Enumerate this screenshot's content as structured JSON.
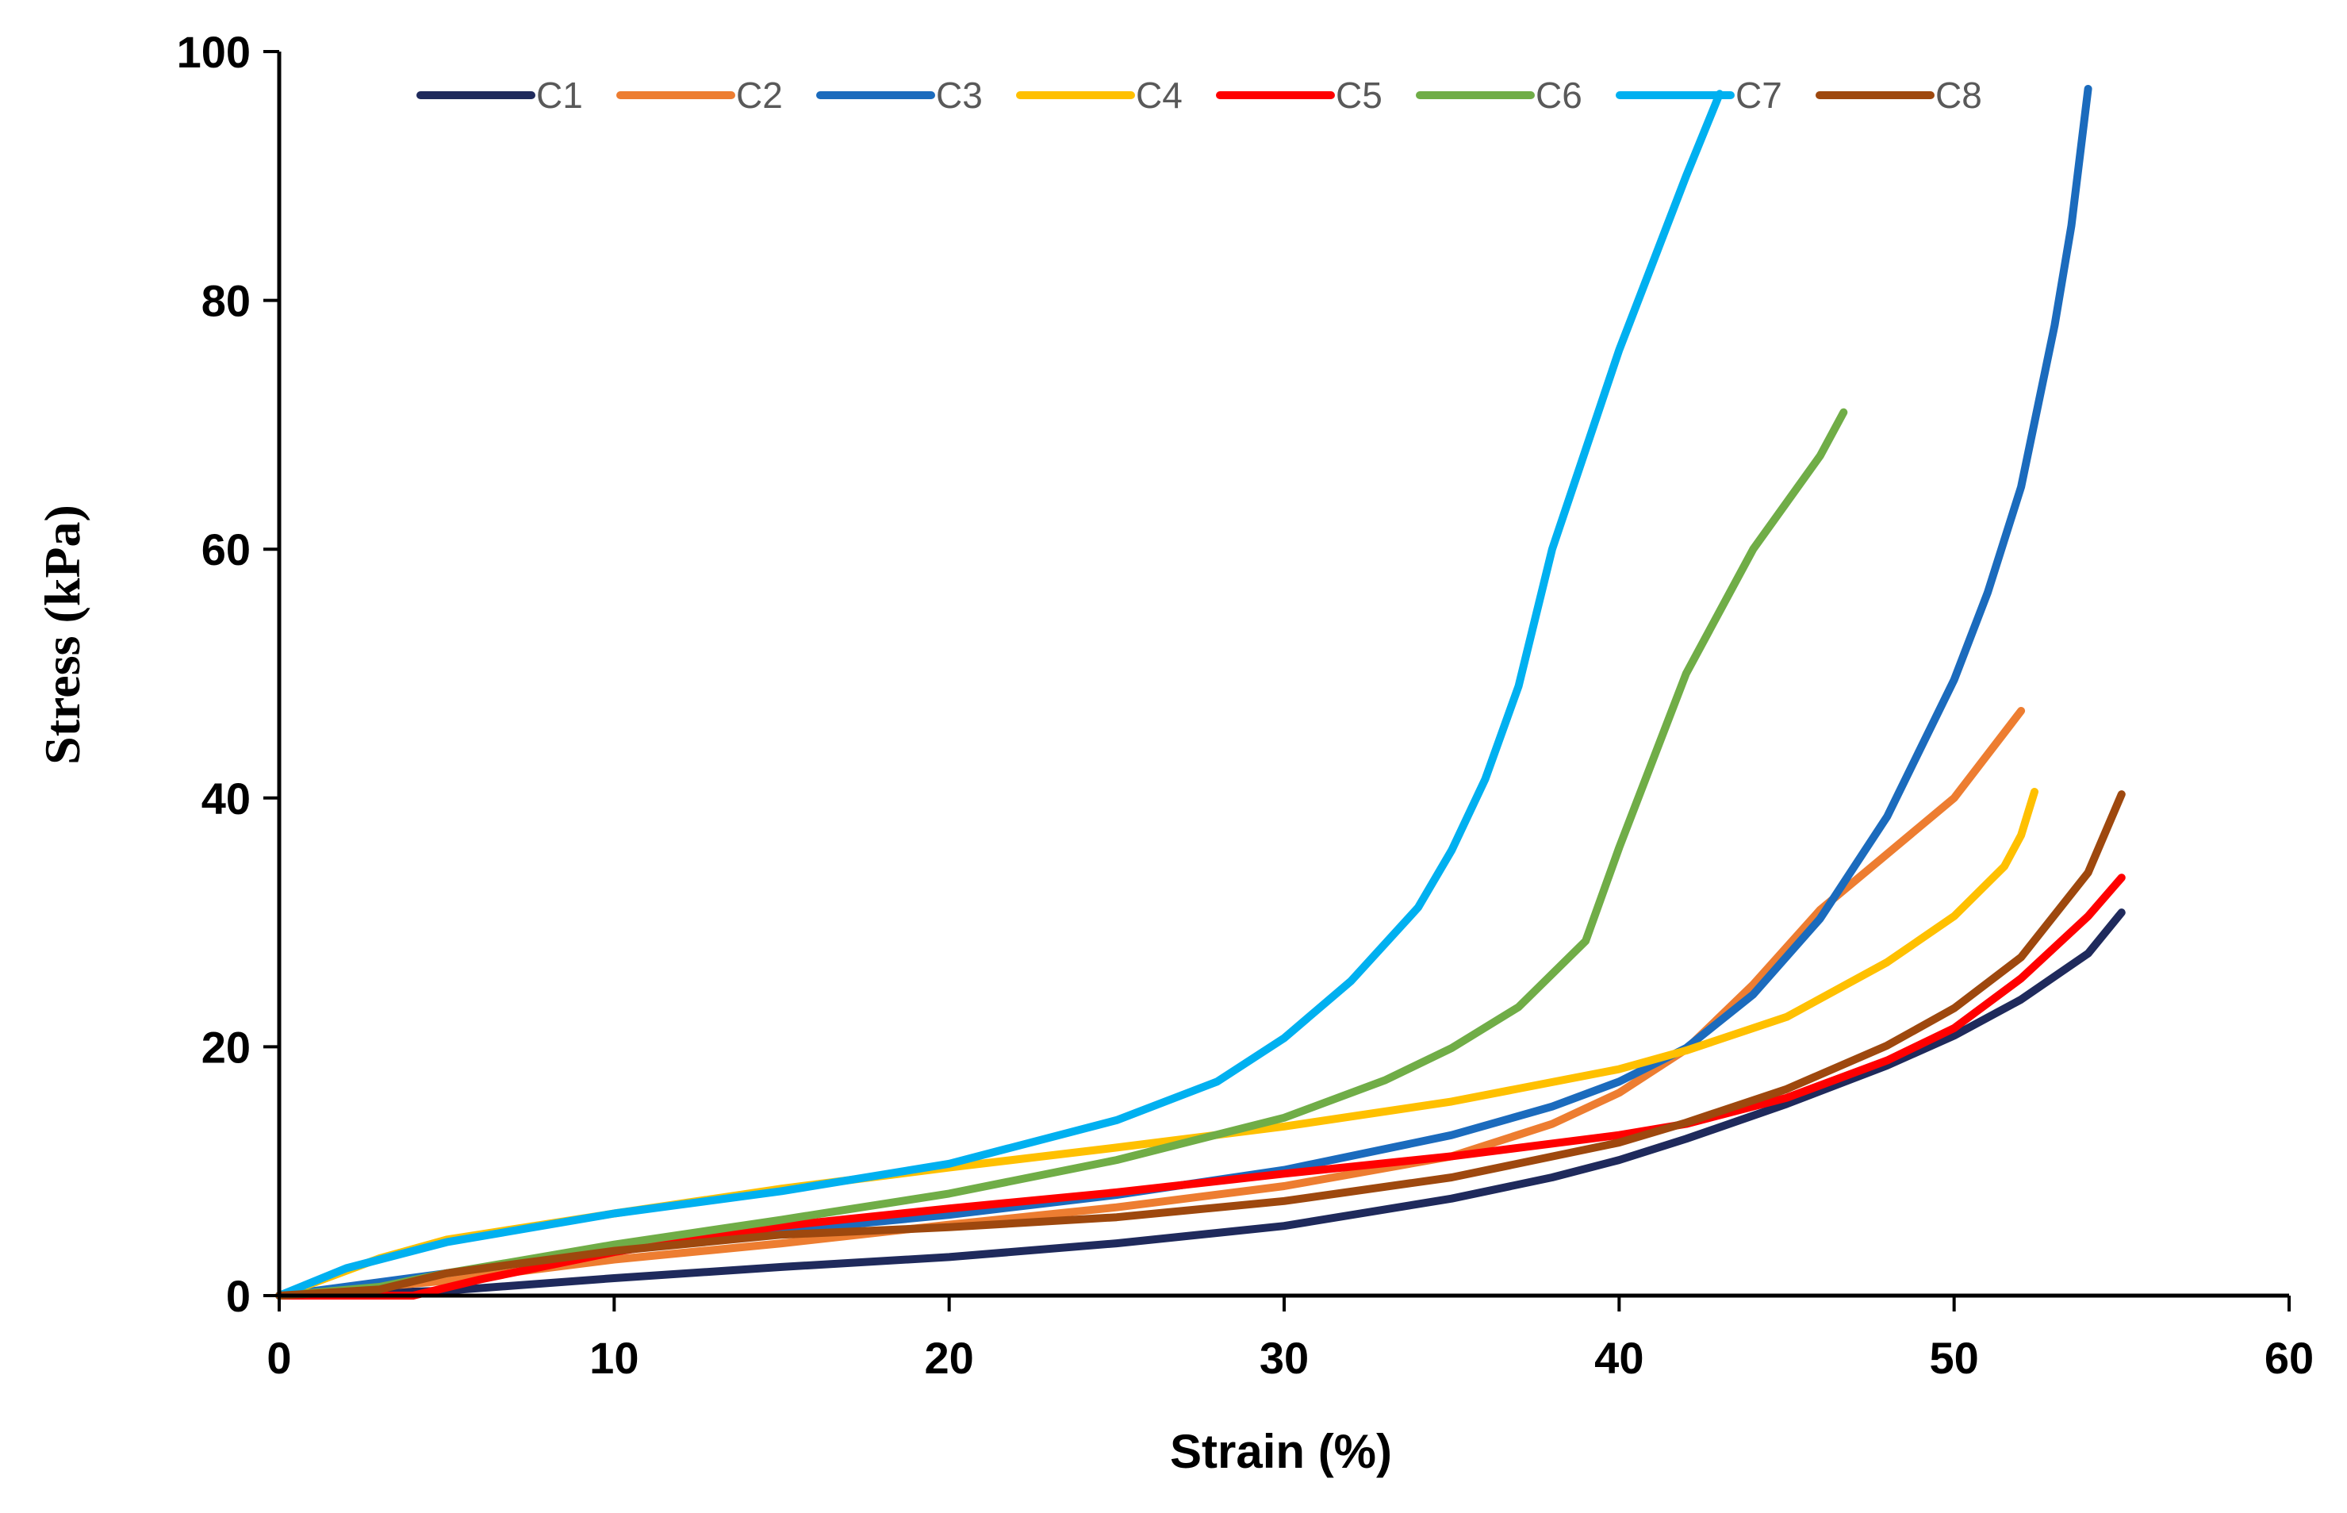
{
  "chart_data": {
    "type": "line",
    "title": "",
    "xlabel": "Strain (%)",
    "ylabel": "Stress (kPa)",
    "xlim": [
      0,
      60
    ],
    "ylim": [
      0,
      100
    ],
    "xticks": [
      0,
      10,
      20,
      30,
      40,
      50,
      60
    ],
    "yticks": [
      0,
      20,
      40,
      60,
      80,
      100
    ],
    "grid": false,
    "legend_position": "top",
    "series": [
      {
        "name": "C1",
        "color": "#1f2a5c",
        "points": [
          [
            0,
            0
          ],
          [
            5,
            0.4
          ],
          [
            10,
            1.4
          ],
          [
            15,
            2.3
          ],
          [
            20,
            3.1
          ],
          [
            25,
            4.2
          ],
          [
            30,
            5.6
          ],
          [
            35,
            7.8
          ],
          [
            38,
            9.5
          ],
          [
            40,
            10.9
          ],
          [
            42,
            12.6
          ],
          [
            45,
            15.4
          ],
          [
            48,
            18.5
          ],
          [
            50,
            20.9
          ],
          [
            52,
            23.8
          ],
          [
            54,
            27.5
          ],
          [
            55,
            30.8
          ]
        ]
      },
      {
        "name": "C2",
        "color": "#ed7d31",
        "points": [
          [
            0,
            0
          ],
          [
            5,
            1.2
          ],
          [
            10,
            2.9
          ],
          [
            15,
            4.2
          ],
          [
            20,
            5.7
          ],
          [
            25,
            7.1
          ],
          [
            30,
            8.8
          ],
          [
            35,
            11.2
          ],
          [
            38,
            13.8
          ],
          [
            40,
            16.3
          ],
          [
            42,
            19.8
          ],
          [
            44,
            25
          ],
          [
            46,
            31
          ],
          [
            48,
            35.5
          ],
          [
            50,
            40
          ],
          [
            52,
            47
          ]
        ]
      },
      {
        "name": "C3",
        "color": "#1b6bbd",
        "points": [
          [
            0,
            0
          ],
          [
            5,
            1.8
          ],
          [
            10,
            3.7
          ],
          [
            15,
            5.2
          ],
          [
            20,
            6.5
          ],
          [
            25,
            8.1
          ],
          [
            30,
            10.1
          ],
          [
            35,
            12.9
          ],
          [
            38,
            15.2
          ],
          [
            40,
            17.2
          ],
          [
            42,
            19.9
          ],
          [
            44,
            24.2
          ],
          [
            46,
            30.3
          ],
          [
            48,
            38.5
          ],
          [
            50,
            49.5
          ],
          [
            51,
            56.5
          ],
          [
            52,
            65
          ],
          [
            53,
            78
          ],
          [
            53.5,
            86
          ],
          [
            54,
            97
          ]
        ]
      },
      {
        "name": "C4",
        "color": "#ffc000",
        "points": [
          [
            0,
            0
          ],
          [
            3,
            3
          ],
          [
            5,
            4.5
          ],
          [
            10,
            6.6
          ],
          [
            15,
            8.6
          ],
          [
            20,
            10.3
          ],
          [
            25,
            11.9
          ],
          [
            30,
            13.6
          ],
          [
            35,
            15.6
          ],
          [
            40,
            18.2
          ],
          [
            42,
            19.7
          ],
          [
            45,
            22.4
          ],
          [
            48,
            26.8
          ],
          [
            50,
            30.5
          ],
          [
            51.5,
            34.5
          ],
          [
            52,
            37
          ],
          [
            52.4,
            40.5
          ]
        ]
      },
      {
        "name": "C5",
        "color": "#ff0000",
        "points": [
          [
            0,
            0
          ],
          [
            4,
            0
          ],
          [
            6,
            1.3
          ],
          [
            10,
            3.5
          ],
          [
            15,
            5.6
          ],
          [
            20,
            7
          ],
          [
            25,
            8.3
          ],
          [
            30,
            9.8
          ],
          [
            35,
            11.2
          ],
          [
            40,
            12.9
          ],
          [
            42,
            13.8
          ],
          [
            45,
            15.9
          ],
          [
            48,
            18.9
          ],
          [
            50,
            21.5
          ],
          [
            52,
            25.5
          ],
          [
            54,
            30.5
          ],
          [
            55,
            33.6
          ]
        ]
      },
      {
        "name": "C6",
        "color": "#70ad47",
        "points": [
          [
            0,
            0
          ],
          [
            3,
            0.7
          ],
          [
            5,
            1.8
          ],
          [
            10,
            4.1
          ],
          [
            15,
            6.1
          ],
          [
            20,
            8.2
          ],
          [
            25,
            10.9
          ],
          [
            30,
            14.3
          ],
          [
            33,
            17.3
          ],
          [
            35,
            19.9
          ],
          [
            37,
            23.2
          ],
          [
            39,
            28.5
          ],
          [
            40,
            36
          ],
          [
            42,
            50
          ],
          [
            44,
            60
          ],
          [
            46,
            67.5
          ],
          [
            46.7,
            71
          ]
        ]
      },
      {
        "name": "C7",
        "color": "#00b0f0",
        "points": [
          [
            0,
            0
          ],
          [
            2,
            2.2
          ],
          [
            5,
            4.3
          ],
          [
            10,
            6.6
          ],
          [
            15,
            8.4
          ],
          [
            20,
            10.6
          ],
          [
            25,
            14.1
          ],
          [
            28,
            17.2
          ],
          [
            30,
            20.7
          ],
          [
            32,
            25.3
          ],
          [
            34,
            31.2
          ],
          [
            35,
            35.8
          ],
          [
            36,
            41.5
          ],
          [
            37,
            49
          ],
          [
            38,
            60
          ],
          [
            39,
            68
          ],
          [
            40,
            76
          ],
          [
            41,
            83
          ],
          [
            42,
            90
          ],
          [
            43,
            96.6
          ]
        ]
      },
      {
        "name": "C8",
        "color": "#9e480e",
        "points": [
          [
            0,
            0
          ],
          [
            3,
            0.5
          ],
          [
            5,
            1.8
          ],
          [
            10,
            3.6
          ],
          [
            15,
            4.9
          ],
          [
            20,
            5.5
          ],
          [
            25,
            6.3
          ],
          [
            30,
            7.6
          ],
          [
            35,
            9.5
          ],
          [
            40,
            12.3
          ],
          [
            42,
            13.9
          ],
          [
            45,
            16.6
          ],
          [
            48,
            20.1
          ],
          [
            50,
            23.1
          ],
          [
            52,
            27.2
          ],
          [
            54,
            34
          ],
          [
            55,
            40.3
          ]
        ]
      }
    ]
  }
}
